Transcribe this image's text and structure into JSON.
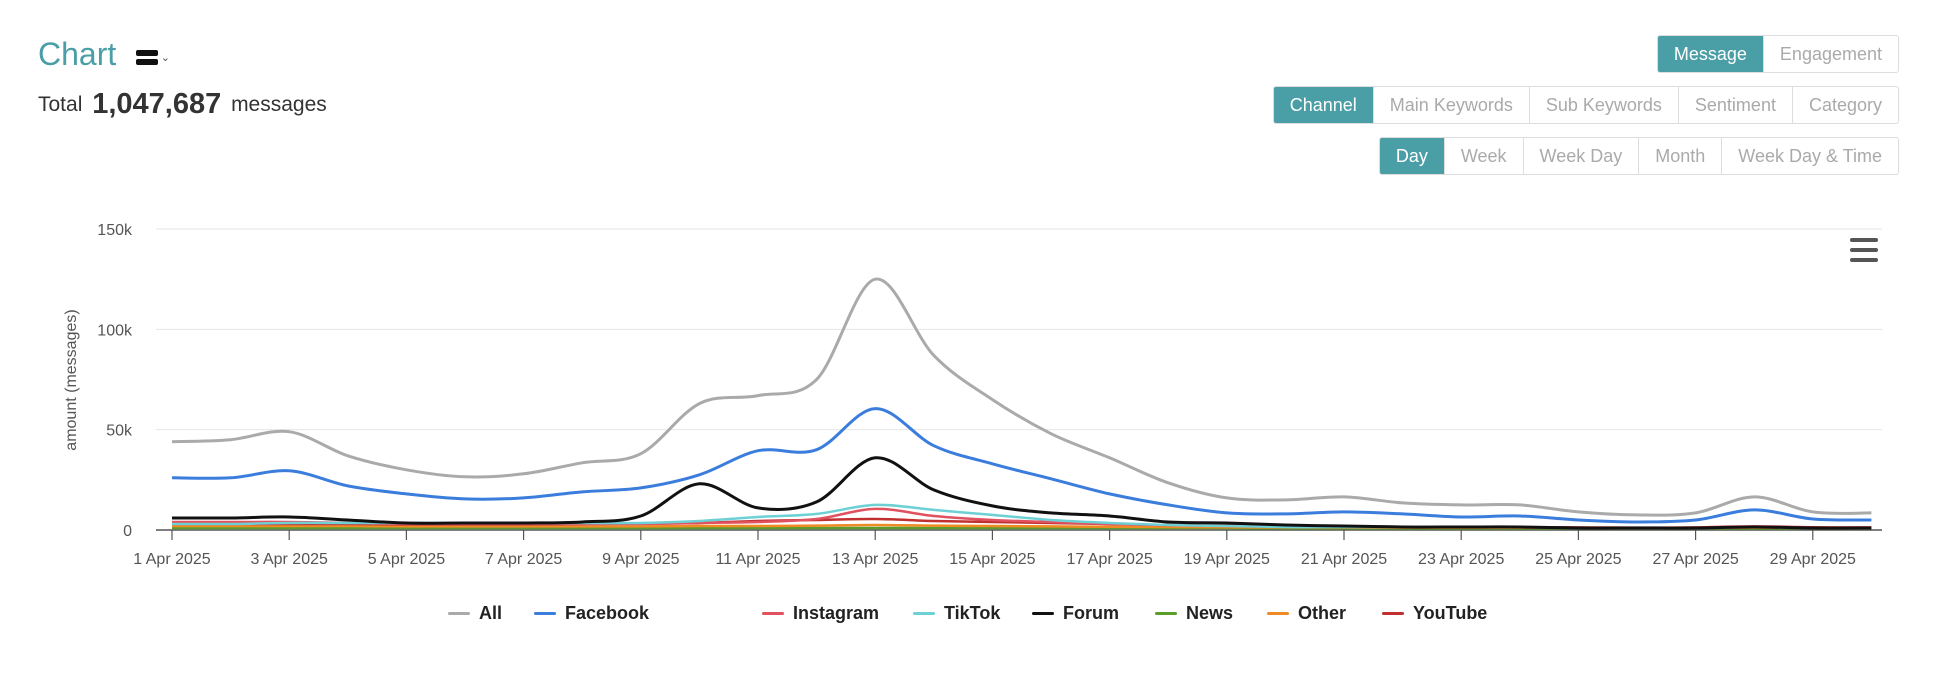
{
  "header": {
    "title": "Chart",
    "total_prefix": "Total",
    "total_value": "1,047,687",
    "total_suffix": "messages"
  },
  "controls": {
    "metric": [
      {
        "label": "Message",
        "active": true
      },
      {
        "label": "Engagement",
        "active": false
      }
    ],
    "dimension": [
      {
        "label": "Channel",
        "active": true
      },
      {
        "label": "Main Keywords",
        "active": false
      },
      {
        "label": "Sub Keywords",
        "active": false
      },
      {
        "label": "Sentiment",
        "active": false
      },
      {
        "label": "Category",
        "active": false
      }
    ],
    "time": [
      {
        "label": "Day",
        "active": true
      },
      {
        "label": "Week",
        "active": false
      },
      {
        "label": "Week Day",
        "active": false
      },
      {
        "label": "Month",
        "active": false
      },
      {
        "label": "Week Day & Time",
        "active": false
      }
    ]
  },
  "colors": {
    "accent": "#4a9ea6"
  },
  "chart_data": {
    "type": "line",
    "ylabel": "amount (messages)",
    "xlabel": "",
    "ylim": [
      0,
      150000
    ],
    "yticks": [
      0,
      50000,
      100000,
      150000
    ],
    "ytick_labels": [
      "0",
      "50k",
      "100k",
      "150k"
    ],
    "grid": true,
    "legend_position": "bottom",
    "x": [
      "1 Apr 2025",
      "2 Apr 2025",
      "3 Apr 2025",
      "4 Apr 2025",
      "5 Apr 2025",
      "6 Apr 2025",
      "7 Apr 2025",
      "8 Apr 2025",
      "9 Apr 2025",
      "10 Apr 2025",
      "11 Apr 2025",
      "12 Apr 2025",
      "13 Apr 2025",
      "14 Apr 2025",
      "15 Apr 2025",
      "16 Apr 2025",
      "17 Apr 2025",
      "18 Apr 2025",
      "19 Apr 2025",
      "20 Apr 2025",
      "21 Apr 2025",
      "22 Apr 2025",
      "23 Apr 2025",
      "24 Apr 2025",
      "25 Apr 2025",
      "26 Apr 2025",
      "27 Apr 2025",
      "28 Apr 2025",
      "29 Apr 2025",
      "30 Apr 2025"
    ],
    "x_tick_labels": [
      "1 Apr 2025",
      "3 Apr 2025",
      "5 Apr 2025",
      "7 Apr 2025",
      "9 Apr 2025",
      "11 Apr 2025",
      "13 Apr 2025",
      "15 Apr 2025",
      "17 Apr 2025",
      "19 Apr 2025",
      "21 Apr 2025",
      "23 Apr 2025",
      "25 Apr 2025",
      "27 Apr 2025",
      "29 Apr 2025"
    ],
    "series": [
      {
        "name": "All",
        "color": "#aaaaaa",
        "values": [
          44000,
          45000,
          49000,
          37000,
          30000,
          26500,
          28000,
          33500,
          38000,
          63000,
          67000,
          75000,
          125000,
          87000,
          65000,
          48000,
          36000,
          23500,
          16000,
          15000,
          16500,
          13500,
          12500,
          12500,
          9000,
          7500,
          8500,
          16500,
          9000,
          8500
        ]
      },
      {
        "name": "Facebook",
        "color": "#3b7ddd",
        "values": [
          26000,
          26000,
          29500,
          22000,
          18000,
          15500,
          16000,
          19000,
          21000,
          27500,
          39500,
          40000,
          60500,
          42000,
          33000,
          25500,
          18000,
          12500,
          8500,
          8000,
          9000,
          8000,
          6500,
          7000,
          5000,
          4000,
          5000,
          10000,
          5500,
          5000
        ]
      },
      {
        "name": "Instagram",
        "color": "#e0525f",
        "values": [
          4000,
          4000,
          4000,
          3500,
          3000,
          3000,
          3000,
          3000,
          3000,
          3500,
          4000,
          5500,
          10500,
          7000,
          5000,
          4000,
          3000,
          2500,
          2000,
          1500,
          1500,
          1500,
          1500,
          1500,
          1000,
          1000,
          1000,
          1500,
          1000,
          1000
        ]
      },
      {
        "name": "TikTok",
        "color": "#6dd0d4",
        "values": [
          3000,
          3000,
          3500,
          3500,
          3500,
          3500,
          3500,
          3500,
          3500,
          4500,
          6500,
          8000,
          12500,
          10000,
          7500,
          5000,
          3500,
          2500,
          2000,
          1500,
          1500,
          1500,
          1500,
          1500,
          1000,
          1000,
          1000,
          1500,
          1000,
          1000
        ]
      },
      {
        "name": "Forum",
        "color": "#111111",
        "values": [
          6000,
          6000,
          6500,
          5000,
          3500,
          3500,
          3500,
          4000,
          7000,
          23000,
          11000,
          14000,
          36000,
          20000,
          12000,
          8500,
          7000,
          4000,
          3500,
          2500,
          2000,
          1500,
          1500,
          1500,
          1000,
          1000,
          1000,
          1500,
          1000,
          1000
        ]
      },
      {
        "name": "News",
        "color": "#5a9e2a",
        "values": [
          1000,
          1000,
          1000,
          1000,
          1000,
          1000,
          1000,
          1000,
          1000,
          1000,
          1000,
          1000,
          1000,
          1000,
          1000,
          1000,
          1000,
          1000,
          1000,
          800,
          800,
          800,
          800,
          800,
          800,
          800,
          800,
          800,
          800,
          800
        ]
      },
      {
        "name": "Other",
        "color": "#f08a24",
        "values": [
          2000,
          2000,
          2000,
          2000,
          1800,
          1800,
          1800,
          1800,
          1800,
          2000,
          2000,
          2200,
          2500,
          2200,
          2000,
          1800,
          1600,
          1500,
          1400,
          1300,
          1300,
          1200,
          1200,
          1200,
          1100,
          1100,
          1100,
          1200,
          1100,
          1100
        ]
      },
      {
        "name": "YouTube",
        "color": "#c0302f",
        "values": [
          3000,
          3000,
          3000,
          3000,
          2800,
          2800,
          2800,
          3000,
          3200,
          3500,
          4500,
          5000,
          5500,
          4500,
          4000,
          3500,
          3000,
          2500,
          2200,
          2000,
          1800,
          1600,
          1500,
          1500,
          1300,
          1200,
          1300,
          1800,
          1400,
          1300
        ]
      }
    ]
  }
}
